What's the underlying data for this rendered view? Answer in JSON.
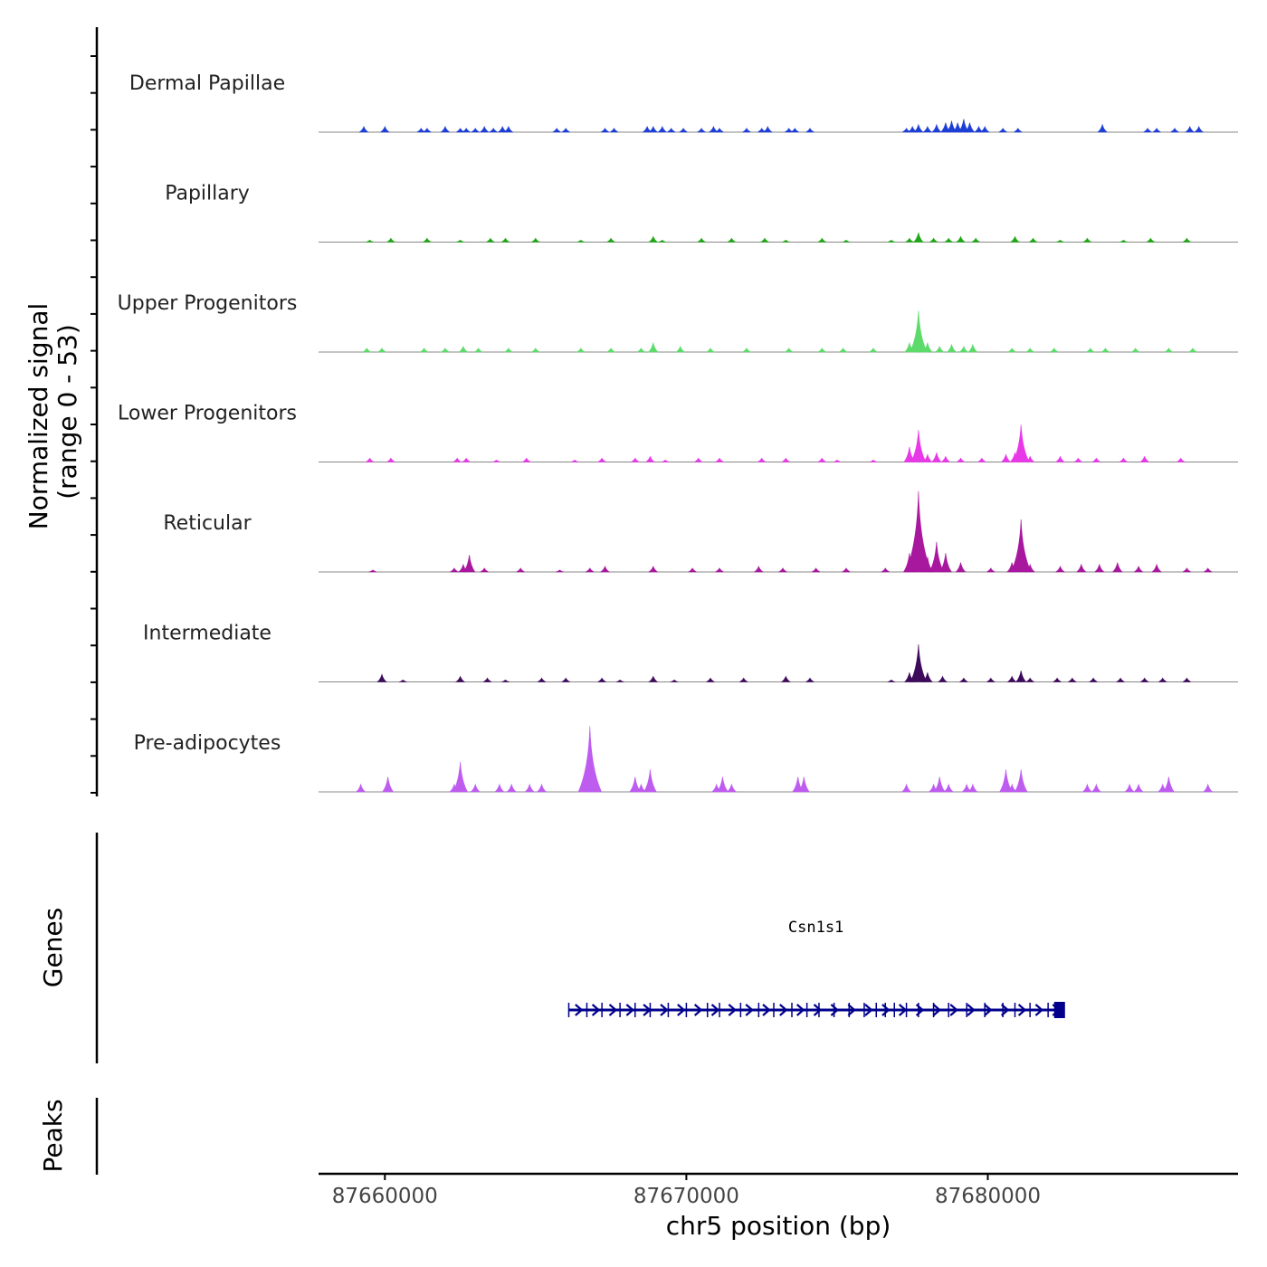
{
  "chart_data": {
    "type": "area",
    "title": "",
    "y_title": "Normalized signal",
    "y_subtitle": "(range 0 - 53)",
    "ylim": [
      0,
      53
    ],
    "xlabel": "chr5 position (bp)",
    "xlim": [
      87657800,
      87688300
    ],
    "x_ticks": [
      87660000,
      87670000,
      87680000
    ],
    "x_tick_labels": [
      "87660000",
      "87670000",
      "87680000"
    ],
    "genes_label": "Genes",
    "peaks_label": "Peaks",
    "gene": {
      "name": "Csn1s1",
      "start": 87666100,
      "end": 87682500,
      "strand": "+",
      "color": "#00008b",
      "exons": [
        87666100,
        87666700,
        87667200,
        87667800,
        87668300,
        87668800,
        87669400,
        87670000,
        87670700,
        87671100,
        87671800,
        87672400,
        87672900,
        87673500,
        87674000,
        87674400,
        87674900,
        87675400,
        87675900,
        87676300,
        87676600,
        87676900,
        87677300,
        87677700,
        87678200,
        87678700,
        87679300,
        87679900,
        87680500,
        87680900,
        87681400,
        87682000
      ]
    },
    "series": [
      {
        "name": "Dermal Papillae",
        "color": "#1e3fd6",
        "peaks": [
          [
            87659300,
            3
          ],
          [
            87660000,
            3
          ],
          [
            87661200,
            2
          ],
          [
            87661400,
            2
          ],
          [
            87662000,
            3
          ],
          [
            87662500,
            2
          ],
          [
            87662700,
            2
          ],
          [
            87663000,
            2
          ],
          [
            87663300,
            3
          ],
          [
            87663600,
            2
          ],
          [
            87663900,
            3
          ],
          [
            87664100,
            3
          ],
          [
            87665700,
            2
          ],
          [
            87666000,
            2
          ],
          [
            87667300,
            2
          ],
          [
            87667600,
            2
          ],
          [
            87668700,
            3
          ],
          [
            87668900,
            3
          ],
          [
            87669200,
            3
          ],
          [
            87669500,
            2
          ],
          [
            87669900,
            2
          ],
          [
            87670500,
            2
          ],
          [
            87670900,
            3
          ],
          [
            87671100,
            2
          ],
          [
            87672000,
            2
          ],
          [
            87672500,
            2
          ],
          [
            87672700,
            3
          ],
          [
            87673400,
            2
          ],
          [
            87673600,
            2
          ],
          [
            87674100,
            2
          ],
          [
            87677300,
            2
          ],
          [
            87677500,
            3
          ],
          [
            87677700,
            4
          ],
          [
            87678000,
            3
          ],
          [
            87678300,
            4
          ],
          [
            87678600,
            5
          ],
          [
            87678800,
            6
          ],
          [
            87679000,
            5
          ],
          [
            87679200,
            7
          ],
          [
            87679400,
            5
          ],
          [
            87679700,
            3
          ],
          [
            87679900,
            3
          ],
          [
            87680500,
            2
          ],
          [
            87681000,
            2
          ],
          [
            87683800,
            4
          ],
          [
            87685300,
            2
          ],
          [
            87685600,
            2
          ],
          [
            87686200,
            2
          ],
          [
            87686700,
            3
          ],
          [
            87687000,
            3
          ]
        ]
      },
      {
        "name": "Papillary",
        "color": "#1ea814",
        "peaks": [
          [
            87659500,
            1
          ],
          [
            87660200,
            2
          ],
          [
            87661400,
            2
          ],
          [
            87662500,
            1
          ],
          [
            87663500,
            2
          ],
          [
            87664000,
            2
          ],
          [
            87665000,
            2
          ],
          [
            87666500,
            1
          ],
          [
            87667500,
            2
          ],
          [
            87668900,
            3
          ],
          [
            87669200,
            1
          ],
          [
            87670500,
            2
          ],
          [
            87671500,
            2
          ],
          [
            87672600,
            2
          ],
          [
            87673300,
            1
          ],
          [
            87674500,
            2
          ],
          [
            87675300,
            1
          ],
          [
            87676800,
            1
          ],
          [
            87677400,
            2
          ],
          [
            87677700,
            5
          ],
          [
            87678200,
            2
          ],
          [
            87678700,
            2
          ],
          [
            87679100,
            3
          ],
          [
            87679600,
            2
          ],
          [
            87680900,
            3
          ],
          [
            87681500,
            2
          ],
          [
            87682400,
            1
          ],
          [
            87683300,
            2
          ],
          [
            87684500,
            1
          ],
          [
            87685400,
            2
          ],
          [
            87686600,
            2
          ]
        ]
      },
      {
        "name": "Upper Progenitors",
        "color": "#5ddb6a",
        "peaks": [
          [
            87659400,
            2
          ],
          [
            87659900,
            2
          ],
          [
            87661300,
            2
          ],
          [
            87662000,
            2
          ],
          [
            87662600,
            3
          ],
          [
            87663100,
            2
          ],
          [
            87664100,
            2
          ],
          [
            87665000,
            2
          ],
          [
            87666500,
            2
          ],
          [
            87667500,
            2
          ],
          [
            87668500,
            2
          ],
          [
            87668900,
            5
          ],
          [
            87669800,
            3
          ],
          [
            87670800,
            2
          ],
          [
            87672000,
            2
          ],
          [
            87673400,
            2
          ],
          [
            87674500,
            2
          ],
          [
            87675200,
            2
          ],
          [
            87676200,
            2
          ],
          [
            87677400,
            5
          ],
          [
            87677700,
            22
          ],
          [
            87678000,
            5
          ],
          [
            87678400,
            3
          ],
          [
            87678800,
            4
          ],
          [
            87679200,
            3
          ],
          [
            87679500,
            4
          ],
          [
            87680800,
            2
          ],
          [
            87681400,
            2
          ],
          [
            87682200,
            2
          ],
          [
            87683400,
            2
          ],
          [
            87683900,
            2
          ],
          [
            87684900,
            2
          ],
          [
            87686000,
            2
          ],
          [
            87686800,
            2
          ]
        ]
      },
      {
        "name": "Lower Progenitors",
        "color": "#e838e8",
        "peaks": [
          [
            87659500,
            2
          ],
          [
            87660200,
            2
          ],
          [
            87662400,
            2
          ],
          [
            87662700,
            2
          ],
          [
            87663700,
            1
          ],
          [
            87664700,
            2
          ],
          [
            87666300,
            1
          ],
          [
            87667200,
            2
          ],
          [
            87668300,
            2
          ],
          [
            87668800,
            3
          ],
          [
            87669300,
            1
          ],
          [
            87670400,
            2
          ],
          [
            87671100,
            2
          ],
          [
            87672500,
            2
          ],
          [
            87673300,
            2
          ],
          [
            87674500,
            2
          ],
          [
            87675000,
            1
          ],
          [
            87676200,
            1
          ],
          [
            87677400,
            8
          ],
          [
            87677700,
            17
          ],
          [
            87678000,
            4
          ],
          [
            87678300,
            5
          ],
          [
            87678600,
            3
          ],
          [
            87679100,
            2
          ],
          [
            87679800,
            2
          ],
          [
            87680600,
            4
          ],
          [
            87680900,
            5
          ],
          [
            87681100,
            20
          ],
          [
            87681400,
            3
          ],
          [
            87682400,
            3
          ],
          [
            87683000,
            2
          ],
          [
            87683600,
            2
          ],
          [
            87684500,
            2
          ],
          [
            87685200,
            3
          ],
          [
            87686400,
            2
          ]
        ]
      },
      {
        "name": "Reticular",
        "color": "#a8189e",
        "peaks": [
          [
            87659600,
            1
          ],
          [
            87662300,
            2
          ],
          [
            87662600,
            4
          ],
          [
            87662800,
            9
          ],
          [
            87663300,
            2
          ],
          [
            87664500,
            2
          ],
          [
            87665800,
            1
          ],
          [
            87666800,
            2
          ],
          [
            87667300,
            3
          ],
          [
            87668900,
            3
          ],
          [
            87670200,
            2
          ],
          [
            87671100,
            2
          ],
          [
            87672400,
            3
          ],
          [
            87673200,
            2
          ],
          [
            87674300,
            2
          ],
          [
            87675300,
            2
          ],
          [
            87676600,
            2
          ],
          [
            87677400,
            10
          ],
          [
            87677700,
            43
          ],
          [
            87678000,
            8
          ],
          [
            87678300,
            16
          ],
          [
            87678600,
            10
          ],
          [
            87679100,
            5
          ],
          [
            87680100,
            2
          ],
          [
            87680800,
            5
          ],
          [
            87681100,
            28
          ],
          [
            87681400,
            4
          ],
          [
            87682400,
            3
          ],
          [
            87683100,
            4
          ],
          [
            87683700,
            4
          ],
          [
            87684300,
            5
          ],
          [
            87685000,
            3
          ],
          [
            87685600,
            4
          ],
          [
            87686600,
            2
          ],
          [
            87687300,
            2
          ]
        ]
      },
      {
        "name": "Intermediate",
        "color": "#3d0a5c",
        "peaks": [
          [
            87659900,
            4
          ],
          [
            87660600,
            1
          ],
          [
            87662500,
            3
          ],
          [
            87663400,
            2
          ],
          [
            87664000,
            1
          ],
          [
            87665200,
            2
          ],
          [
            87666000,
            2
          ],
          [
            87667200,
            2
          ],
          [
            87667800,
            1
          ],
          [
            87668900,
            3
          ],
          [
            87669600,
            1
          ],
          [
            87670800,
            2
          ],
          [
            87671900,
            2
          ],
          [
            87673300,
            3
          ],
          [
            87674100,
            2
          ],
          [
            87676800,
            1
          ],
          [
            87677400,
            5
          ],
          [
            87677700,
            20
          ],
          [
            87678000,
            5
          ],
          [
            87678500,
            3
          ],
          [
            87679200,
            2
          ],
          [
            87680100,
            2
          ],
          [
            87680800,
            3
          ],
          [
            87681100,
            6
          ],
          [
            87681400,
            2
          ],
          [
            87682300,
            2
          ],
          [
            87682800,
            2
          ],
          [
            87683500,
            2
          ],
          [
            87684400,
            2
          ],
          [
            87685200,
            2
          ],
          [
            87685800,
            2
          ],
          [
            87686600,
            2
          ]
        ]
      },
      {
        "name": "Pre-adipocytes",
        "color": "#be5cf0",
        "peaks": [
          [
            87659200,
            4
          ],
          [
            87660100,
            8
          ],
          [
            87662300,
            4
          ],
          [
            87662500,
            16
          ],
          [
            87663000,
            4
          ],
          [
            87663800,
            4
          ],
          [
            87664200,
            4
          ],
          [
            87664800,
            4
          ],
          [
            87665200,
            4
          ],
          [
            87666700,
            4
          ],
          [
            87666800,
            35
          ],
          [
            87667000,
            4
          ],
          [
            87668300,
            8
          ],
          [
            87668500,
            4
          ],
          [
            87668800,
            12
          ],
          [
            87671000,
            4
          ],
          [
            87671200,
            8
          ],
          [
            87671500,
            4
          ],
          [
            87673700,
            8
          ],
          [
            87673900,
            8
          ],
          [
            87677300,
            4
          ],
          [
            87678200,
            4
          ],
          [
            87678400,
            8
          ],
          [
            87678700,
            4
          ],
          [
            87679300,
            4
          ],
          [
            87679500,
            4
          ],
          [
            87680600,
            12
          ],
          [
            87680800,
            4
          ],
          [
            87681100,
            12
          ],
          [
            87683300,
            4
          ],
          [
            87683600,
            4
          ],
          [
            87684700,
            4
          ],
          [
            87685000,
            4
          ],
          [
            87685800,
            4
          ],
          [
            87686000,
            8
          ],
          [
            87687300,
            4
          ]
        ]
      }
    ]
  }
}
